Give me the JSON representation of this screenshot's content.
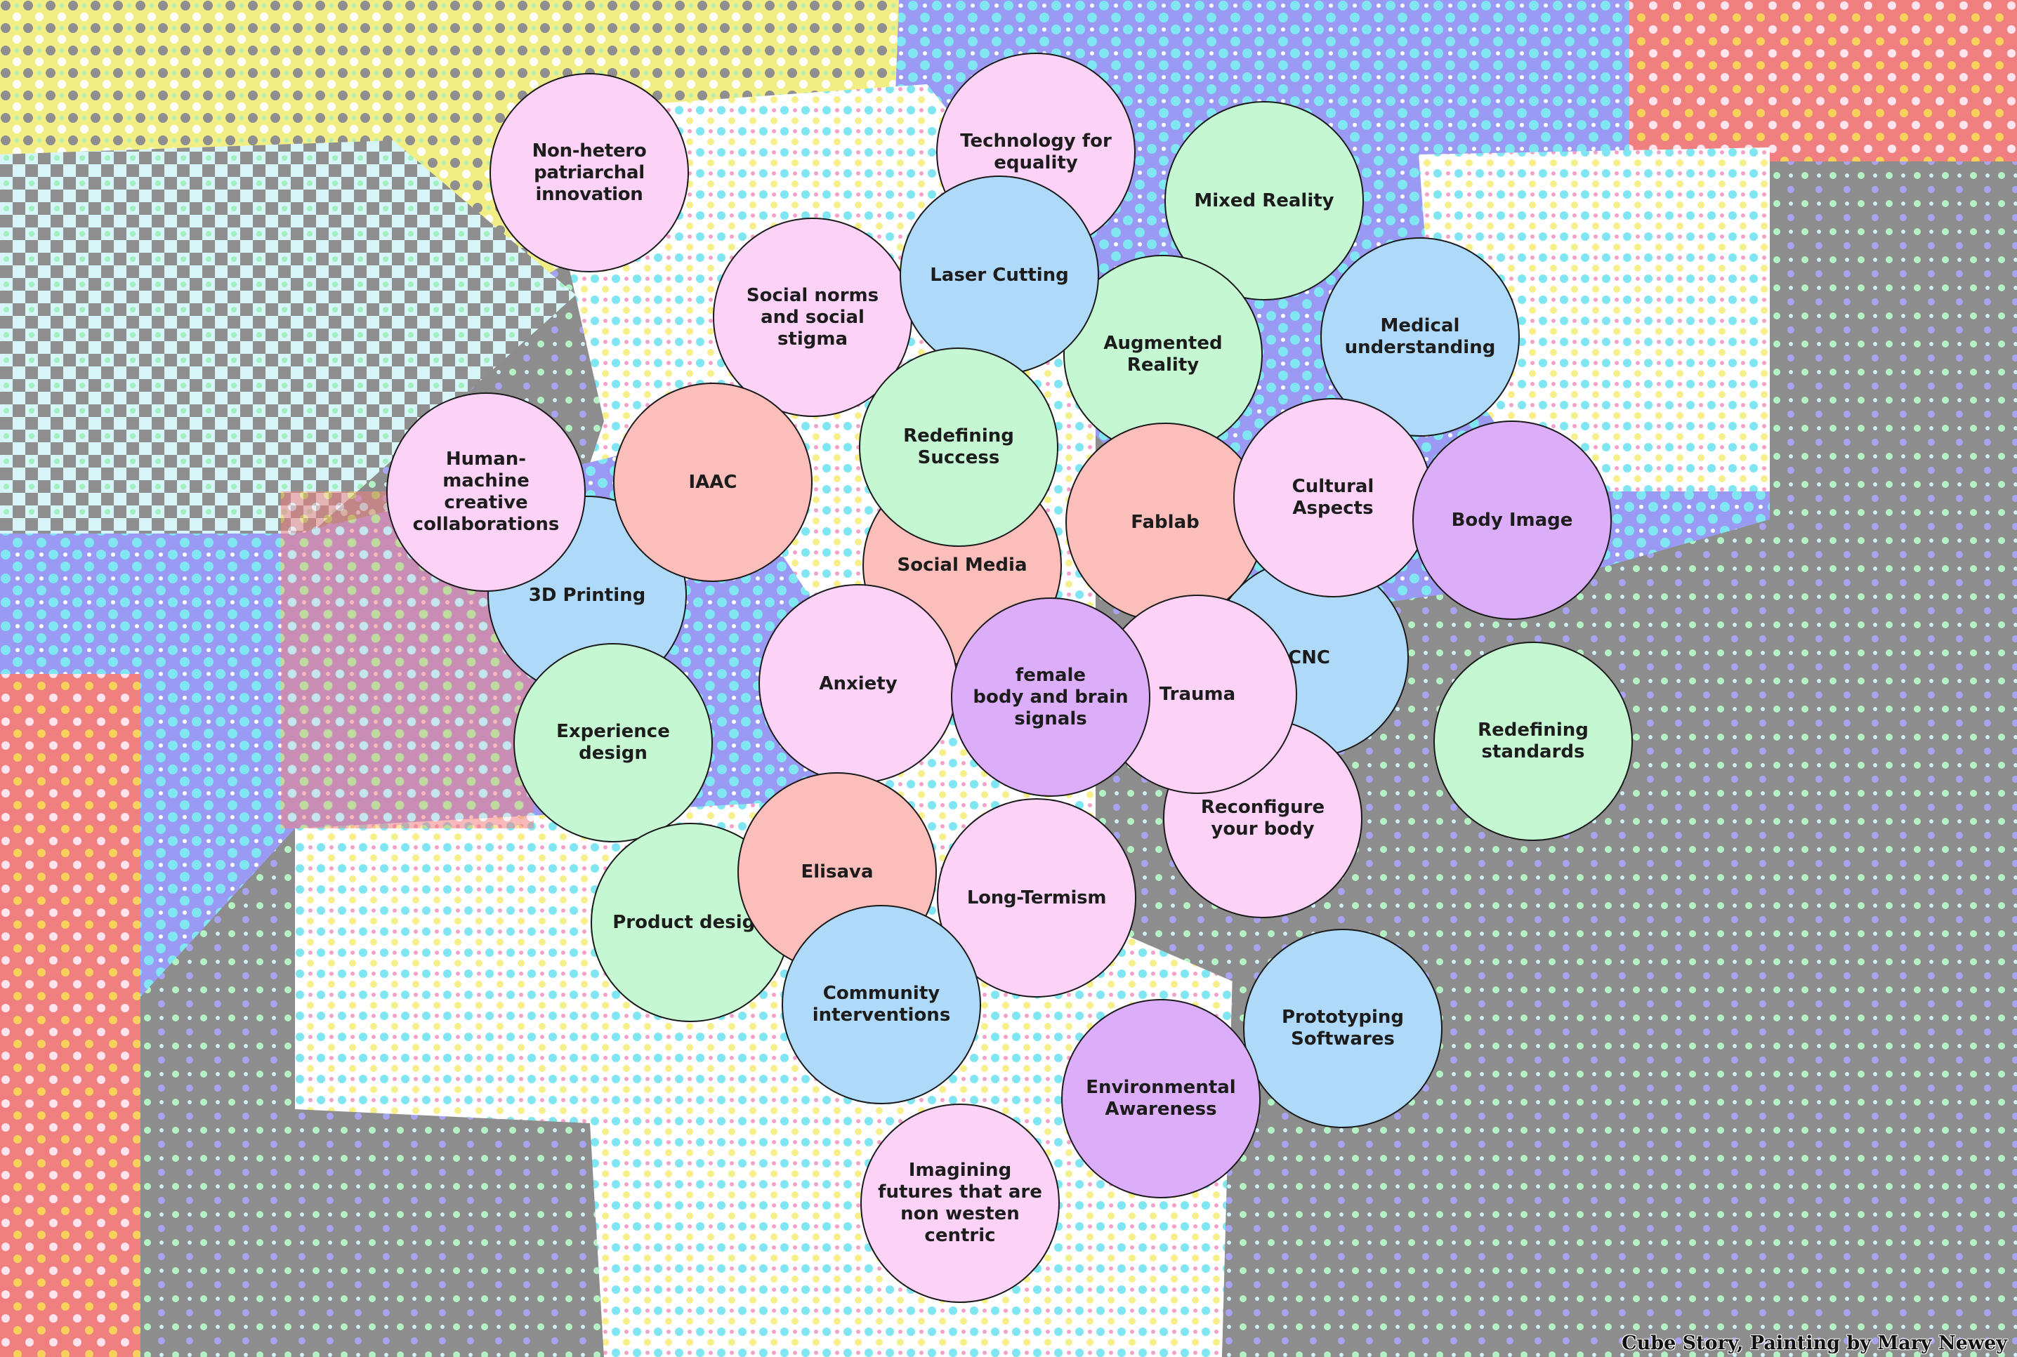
{
  "palette": {
    "pink": "#fcd3f7",
    "blue": "#afd9f8",
    "green": "#c5f8d2",
    "salmon": "#fcbeba",
    "purple": "#dcadf9",
    "background_gray": "#8f8f8f"
  },
  "nodes": {
    "non_hetero": "Non-hetero\npatriarchal\ninnovation",
    "technology_equality": "Technology for\nequality",
    "mixed_reality": "Mixed Reality",
    "social_norms": "Social norms\nand social\nstigma",
    "laser_cutting": "Laser Cutting",
    "augmented_reality": "Augmented\nReality",
    "medical_understanding": "Medical\nunderstanding",
    "human_machine": "Human-\nmachine\ncreative\ncollaborations",
    "iaac": "IAAC",
    "redefining_success": "Redefining\nSuccess",
    "fablab": "Fablab",
    "cultural_aspects": "Cultural Aspects",
    "body_image": "Body Image",
    "social_media": "Social Media",
    "printing_3d": "3D Printing",
    "cnc": "CNC",
    "anxiety": "Anxiety",
    "female_body": "female\nbody and brain\nsignals",
    "trauma": "Trauma",
    "experience_design": "Experience\ndesign",
    "redefining_standards": "Redefining\nstandards",
    "reconfigure_body": "Reconfigure\nyour body",
    "elisava": "Elisava",
    "product_design": "Product design",
    "long_termism": "Long-Termism",
    "community_interventions": "Community\ninterventions",
    "prototyping_softwares": "Prototyping\nSoftwares",
    "environmental_awareness": "Environmental\nAwareness",
    "imagining_futures": "Imagining\nfutures that are\nnon westen\ncentric"
  },
  "credit": "Cube Story, Painting by Mary Newey"
}
